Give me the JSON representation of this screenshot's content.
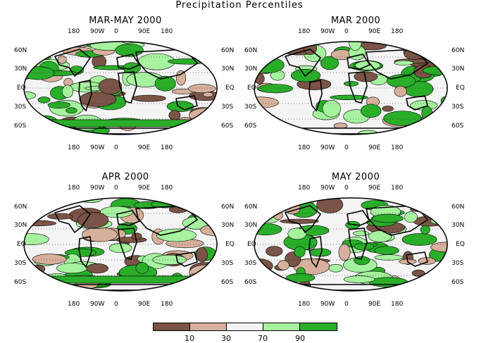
{
  "title": "Precipitation Percentiles",
  "panels": [
    {
      "title": "MAR-MAY 2000"
    },
    {
      "title": "MAR 2000"
    },
    {
      "title": "APR 2000"
    },
    {
      "title": "MAY 2000"
    }
  ],
  "lon_labels": [
    "180",
    "90W",
    "0",
    "90E",
    "180"
  ],
  "lat_labels": [
    "60N",
    "30N",
    "EQ",
    "30S",
    "60S"
  ],
  "legend": {
    "colors": [
      "#7a5446",
      "#d6b09c",
      "#f4f4f4",
      "#a6f29f",
      "#2aae2a"
    ],
    "labels": [
      "10",
      "30",
      "70",
      "90"
    ]
  }
}
